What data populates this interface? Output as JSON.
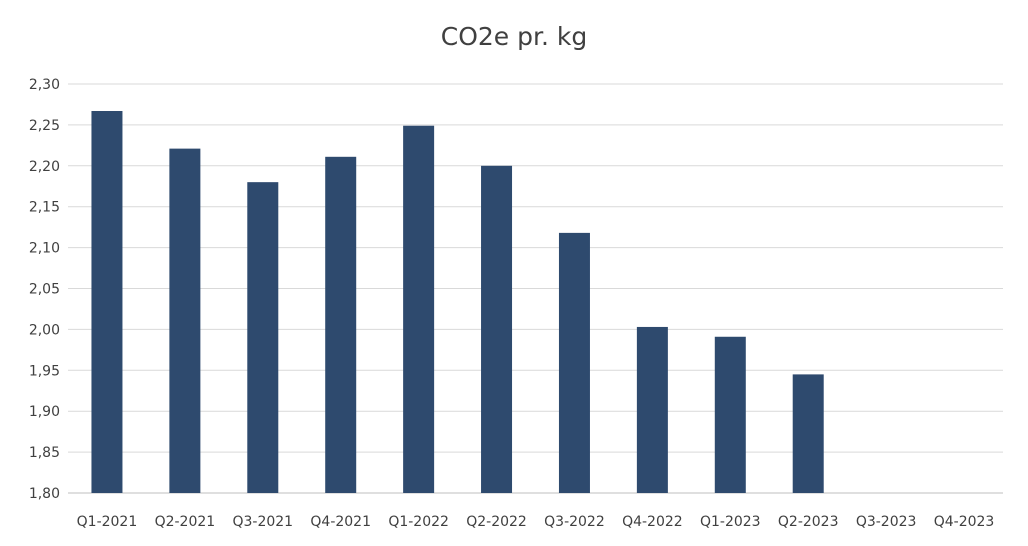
{
  "chart_data": {
    "type": "bar",
    "title": "CO2e pr. kg",
    "xlabel": "",
    "ylabel": "",
    "categories": [
      "Q1-2021",
      "Q2-2021",
      "Q3-2021",
      "Q4-2021",
      "Q1-2022",
      "Q2-2022",
      "Q3-2022",
      "Q4-2022",
      "Q1-2023",
      "Q2-2023",
      "Q3-2023",
      "Q4-2023"
    ],
    "values": [
      2.267,
      2.221,
      2.18,
      2.211,
      2.249,
      2.2,
      2.118,
      2.003,
      1.991,
      1.945,
      null,
      null
    ],
    "ylim": [
      1.8,
      2.3
    ],
    "yticks": [
      "1,80",
      "1,85",
      "1,90",
      "1,95",
      "2,00",
      "2,05",
      "2,10",
      "2,15",
      "2,20",
      "2,25",
      "2,30"
    ],
    "grid": true,
    "legend": "none",
    "bar_color": "#2e4a6e"
  }
}
